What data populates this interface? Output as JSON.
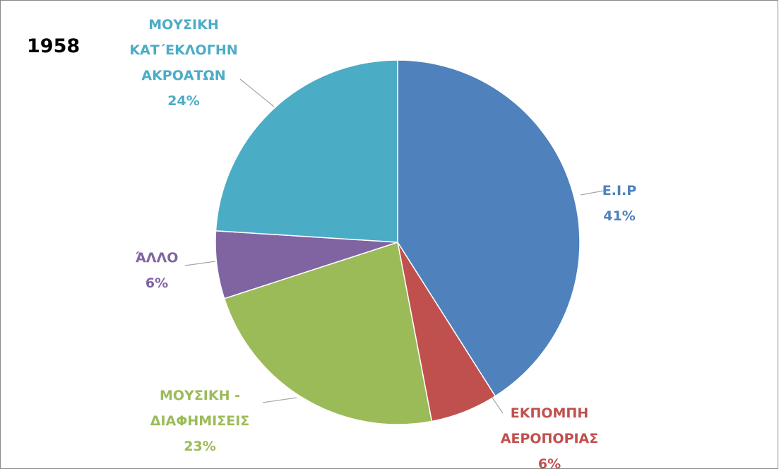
{
  "chart_data": {
    "type": "pie",
    "title": "1958",
    "categories": [
      "Ε.Ι.Ρ",
      "ΕΚΠΟΜΠΗ ΑΕΡΟΠΟΡΙΑΣ",
      "ΜΟΥΣΙΚΗ - ΔΙΑΦΗΜΙΣΕΙΣ",
      "ΆΛΛΟ",
      "ΜΟΥΣΙΚΗ ΚΑΤ΄ΕΚΛΟΓΗΝ ΑΚΡΟΑΤΩΝ"
    ],
    "values": [
      41,
      6,
      23,
      6,
      24
    ],
    "value_labels": [
      "41%",
      "6%",
      "23%",
      "6%",
      "24%"
    ],
    "colors": [
      "#4f81bd",
      "#c0504d",
      "#9bbb59",
      "#8064a2",
      "#4bacc6"
    ]
  }
}
